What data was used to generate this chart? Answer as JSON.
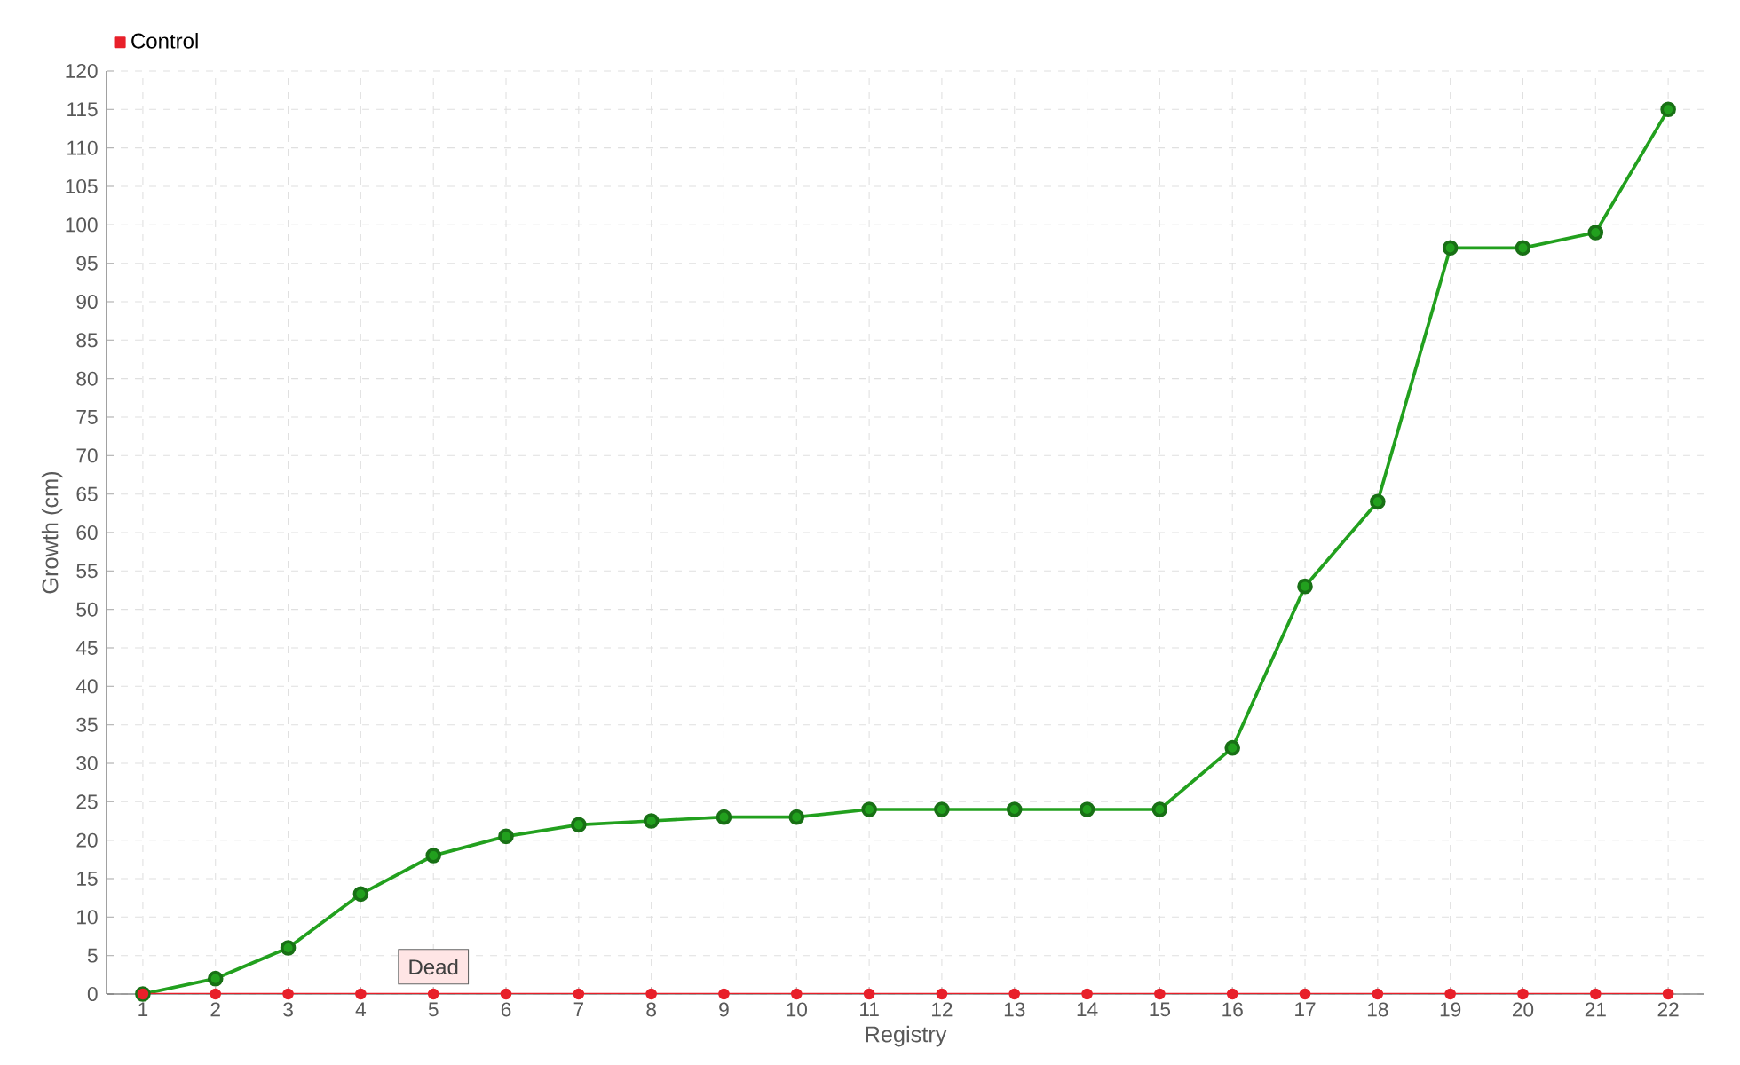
{
  "chart_data": {
    "type": "line",
    "xlabel": "Registry",
    "ylabel": "Growth (cm)",
    "categories": [
      "1",
      "2",
      "3",
      "4",
      "5",
      "6",
      "7",
      "8",
      "9",
      "10",
      "11",
      "12",
      "13",
      "14",
      "15",
      "16",
      "17",
      "18",
      "19",
      "20",
      "21",
      "22"
    ],
    "series": [
      {
        "color": "#22a01e",
        "values": [
          0,
          2,
          6,
          13,
          18,
          20.5,
          22,
          22.5,
          23,
          23,
          24,
          24,
          24,
          24,
          24,
          32,
          53,
          64,
          97,
          97,
          99,
          115
        ]
      },
      {
        "name": "Control",
        "color": "#e8202a",
        "values": [
          0,
          0,
          0,
          0,
          0,
          0,
          0,
          0,
          0,
          0,
          0,
          0,
          0,
          0,
          0,
          0,
          0,
          0,
          0,
          0,
          0,
          0
        ]
      }
    ],
    "annotations": [
      {
        "text": "Dead",
        "x": "5",
        "y": 0
      }
    ],
    "ylim": [
      0,
      120
    ],
    "yticks": [
      0,
      5,
      10,
      15,
      20,
      25,
      30,
      35,
      40,
      45,
      50,
      55,
      60,
      65,
      70,
      75,
      80,
      85,
      90,
      95,
      100,
      105,
      110,
      115,
      120
    ],
    "grid": true,
    "legend": "top left",
    "marker": "circle",
    "line_style": "solid"
  }
}
